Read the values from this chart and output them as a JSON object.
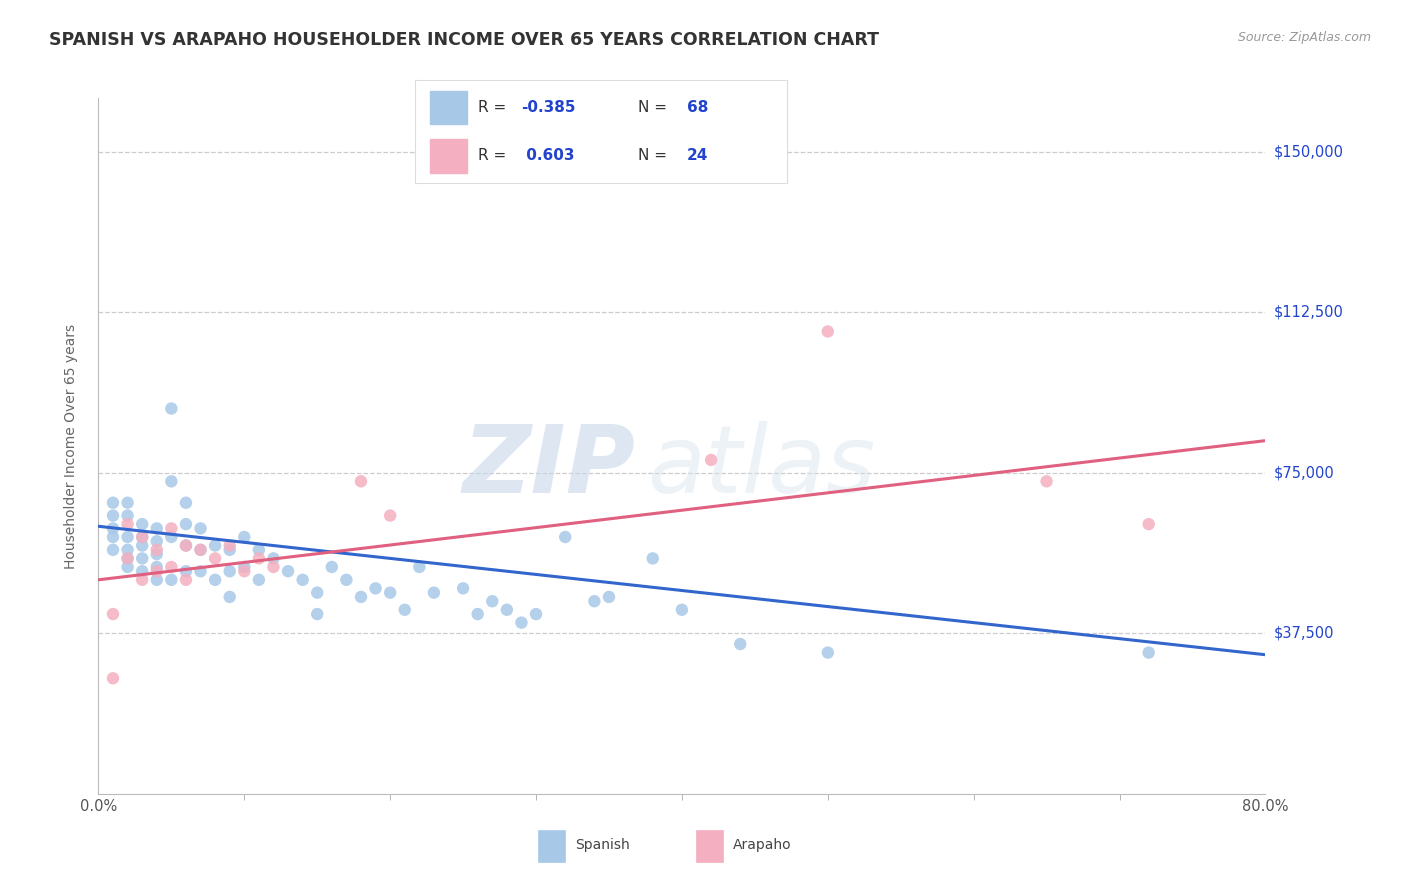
{
  "title": "SPANISH VS ARAPAHO HOUSEHOLDER INCOME OVER 65 YEARS CORRELATION CHART",
  "source": "Source: ZipAtlas.com",
  "ylabel": "Householder Income Over 65 years",
  "xlim": [
    0.0,
    0.8
  ],
  "ylim": [
    0,
    162500
  ],
  "yticks": [
    37500,
    75000,
    112500,
    150000
  ],
  "ytick_labels": [
    "$37,500",
    "$75,000",
    "$112,500",
    "$150,000"
  ],
  "xtick_labels": [
    "0.0%",
    "80.0%"
  ],
  "watermark": "ZIPatlas",
  "r_spanish": "-0.385",
  "n_spanish": "68",
  "r_arapaho": "0.603",
  "n_arapaho": "24",
  "spanish_fill_color": "#a8c8e8",
  "arapaho_fill_color": "#f4b0c0",
  "spanish_line_color": "#3366cc",
  "arapaho_line_color": "#e06080",
  "label_color": "#2244cc",
  "background_color": "#ffffff",
  "grid_color": "#cccccc",
  "title_fontsize": 12.5,
  "spanish_scatter_x": [
    0.01,
    0.01,
    0.01,
    0.01,
    0.01,
    0.02,
    0.02,
    0.02,
    0.02,
    0.02,
    0.02,
    0.03,
    0.03,
    0.03,
    0.03,
    0.03,
    0.04,
    0.04,
    0.04,
    0.04,
    0.04,
    0.05,
    0.05,
    0.05,
    0.05,
    0.06,
    0.06,
    0.06,
    0.06,
    0.07,
    0.07,
    0.07,
    0.08,
    0.08,
    0.09,
    0.09,
    0.09,
    0.1,
    0.1,
    0.11,
    0.11,
    0.12,
    0.13,
    0.14,
    0.15,
    0.15,
    0.16,
    0.17,
    0.18,
    0.19,
    0.2,
    0.21,
    0.22,
    0.23,
    0.25,
    0.26,
    0.27,
    0.28,
    0.29,
    0.3,
    0.32,
    0.34,
    0.35,
    0.38,
    0.4,
    0.44,
    0.5,
    0.72
  ],
  "spanish_scatter_y": [
    62000,
    68000,
    65000,
    60000,
    57000,
    68000,
    65000,
    60000,
    57000,
    55000,
    53000,
    63000,
    60000,
    58000,
    55000,
    52000,
    62000,
    59000,
    56000,
    53000,
    50000,
    90000,
    73000,
    60000,
    50000,
    68000,
    63000,
    58000,
    52000,
    62000,
    57000,
    52000,
    58000,
    50000,
    57000,
    52000,
    46000,
    60000,
    53000,
    57000,
    50000,
    55000,
    52000,
    50000,
    47000,
    42000,
    53000,
    50000,
    46000,
    48000,
    47000,
    43000,
    53000,
    47000,
    48000,
    42000,
    45000,
    43000,
    40000,
    42000,
    60000,
    45000,
    46000,
    55000,
    43000,
    35000,
    33000,
    33000
  ],
  "arapaho_scatter_x": [
    0.01,
    0.01,
    0.02,
    0.02,
    0.03,
    0.03,
    0.04,
    0.04,
    0.05,
    0.05,
    0.06,
    0.06,
    0.07,
    0.08,
    0.09,
    0.1,
    0.11,
    0.12,
    0.18,
    0.2,
    0.42,
    0.5,
    0.65,
    0.72
  ],
  "arapaho_scatter_y": [
    42000,
    27000,
    63000,
    55000,
    60000,
    50000,
    57000,
    52000,
    62000,
    53000,
    58000,
    50000,
    57000,
    55000,
    58000,
    52000,
    55000,
    53000,
    73000,
    65000,
    78000,
    108000,
    73000,
    63000
  ]
}
